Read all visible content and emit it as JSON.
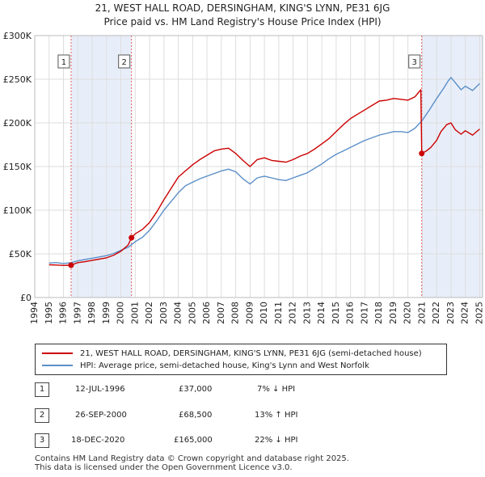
{
  "title_line1": "21, WEST HALL ROAD, DERSINGHAM, KING'S LYNN, PE31 6JG",
  "title_line2": "Price paid vs. HM Land Registry's House Price Index (HPI)",
  "colors": {
    "property": "#cc0000",
    "hpi": "#5b8fc9",
    "shade": "#e8eef9",
    "marker_line": "#e06060"
  },
  "chart_data": {
    "type": "line",
    "title": "21, WEST HALL ROAD, DERSINGHAM, KING'S LYNN, PE31 6JG",
    "subtitle": "Price paid vs. HM Land Registry's House Price Index (HPI)",
    "xlim": [
      1994,
      2025.2
    ],
    "ylim": [
      0,
      300000
    ],
    "yticks": [
      0,
      50000,
      100000,
      150000,
      200000,
      250000,
      300000
    ],
    "ytick_labels": [
      "£0",
      "£50K",
      "£100K",
      "£150K",
      "£200K",
      "£250K",
      "£300K"
    ],
    "xticks": [
      1994,
      1995,
      1996,
      1997,
      1998,
      1999,
      2000,
      2001,
      2002,
      2003,
      2004,
      2005,
      2006,
      2007,
      2008,
      2009,
      2010,
      2011,
      2012,
      2013,
      2014,
      2015,
      2016,
      2017,
      2018,
      2019,
      2020,
      2021,
      2022,
      2023,
      2024,
      2025
    ],
    "grid": true,
    "shaded_spans": [
      [
        1996.53,
        2000.74
      ],
      [
        2020.96,
        2025.2
      ]
    ],
    "series": [
      {
        "name": "21, WEST HALL ROAD, DERSINGHAM, KING'S LYNN, PE31 6JG (semi-detached house)",
        "x": [
          1995,
          1995.5,
          1996,
          1996.53,
          1997,
          1997.5,
          1998,
          1998.5,
          1999,
          1999.5,
          2000,
          2000.5,
          2000.74,
          2001,
          2001.5,
          2002,
          2002.5,
          2003,
          2003.5,
          2004,
          2004.5,
          2005,
          2005.5,
          2006,
          2006.5,
          2007,
          2007.5,
          2008,
          2008.5,
          2009,
          2009.5,
          2010,
          2010.5,
          2011,
          2011.5,
          2012,
          2012.5,
          2013,
          2013.5,
          2014,
          2014.5,
          2015,
          2015.5,
          2016,
          2016.5,
          2017,
          2017.5,
          2018,
          2018.5,
          2019,
          2019.5,
          2020,
          2020.5,
          2020.9,
          2020.96,
          2021.3,
          2021.6,
          2022,
          2022.3,
          2022.7,
          2023,
          2023.3,
          2023.7,
          2024,
          2024.5,
          2025
        ],
        "values": [
          37500,
          37200,
          36800,
          37000,
          40000,
          41000,
          42500,
          44000,
          45500,
          48500,
          53000,
          60000,
          68500,
          73000,
          78000,
          86000,
          98000,
          112000,
          125000,
          138000,
          145000,
          152000,
          158000,
          163000,
          168000,
          170000,
          171000,
          165000,
          157000,
          150000,
          158000,
          160000,
          157000,
          156000,
          155000,
          158000,
          162000,
          165000,
          170000,
          176000,
          182000,
          190000,
          198000,
          205000,
          210000,
          215000,
          220000,
          225000,
          226000,
          228000,
          227000,
          226000,
          230000,
          238000,
          165000,
          168000,
          172000,
          180000,
          190000,
          198000,
          200000,
          192000,
          187000,
          191000,
          186000,
          193000
        ]
      },
      {
        "name": "HPI: Average price, semi-detached house, King's Lynn and West Norfolk",
        "x": [
          1995,
          1995.5,
          1996,
          1996.53,
          1997,
          1997.5,
          1998,
          1998.5,
          1999,
          1999.5,
          2000,
          2000.5,
          2000.74,
          2001,
          2001.5,
          2002,
          2002.5,
          2003,
          2003.5,
          2004,
          2004.5,
          2005,
          2005.5,
          2006,
          2006.5,
          2007,
          2007.5,
          2008,
          2008.5,
          2009,
          2009.5,
          2010,
          2010.5,
          2011,
          2011.5,
          2012,
          2012.5,
          2013,
          2013.5,
          2014,
          2014.5,
          2015,
          2015.5,
          2016,
          2016.5,
          2017,
          2017.5,
          2018,
          2018.5,
          2019,
          2019.5,
          2020,
          2020.5,
          2021,
          2021.5,
          2022,
          2022.5,
          2022.8,
          2023,
          2023.3,
          2023.7,
          2024,
          2024.5,
          2025
        ],
        "values": [
          39500,
          40000,
          39000,
          39800,
          42000,
          43500,
          45000,
          46500,
          48000,
          50500,
          54000,
          57500,
          60500,
          64000,
          69000,
          77000,
          88000,
          100000,
          110000,
          120000,
          128000,
          132000,
          136000,
          139000,
          142000,
          145000,
          147000,
          144000,
          136000,
          130000,
          137000,
          139000,
          137000,
          135000,
          134000,
          137000,
          140000,
          143000,
          148000,
          153000,
          159000,
          164000,
          168000,
          172000,
          176000,
          180000,
          183000,
          186000,
          188000,
          190000,
          190000,
          189000,
          194000,
          203000,
          215000,
          228000,
          240000,
          248000,
          252000,
          246000,
          238000,
          242000,
          237000,
          245000
        ]
      }
    ],
    "sales": [
      {
        "label": "1",
        "x": 1996.53,
        "price": 37000
      },
      {
        "label": "2",
        "x": 2000.74,
        "price": 68500
      },
      {
        "label": "3",
        "x": 2020.96,
        "price": 165000
      }
    ]
  },
  "legend": {
    "property": "21, WEST HALL ROAD, DERSINGHAM, KING'S LYNN, PE31 6JG (semi-detached house)",
    "hpi": "HPI: Average price, semi-detached house, King's Lynn and West Norfolk"
  },
  "sales_table": [
    {
      "num": "1",
      "date": "12-JUL-1996",
      "price": "£37,000",
      "hpi": "7% ↓ HPI"
    },
    {
      "num": "2",
      "date": "26-SEP-2000",
      "price": "£68,500",
      "hpi": "13% ↑ HPI"
    },
    {
      "num": "3",
      "date": "18-DEC-2020",
      "price": "£165,000",
      "hpi": "22% ↓ HPI"
    }
  ],
  "footer": {
    "line1": "Contains HM Land Registry data © Crown copyright and database right 2025.",
    "line2": "This data is licensed under the Open Government Licence v3.0."
  }
}
